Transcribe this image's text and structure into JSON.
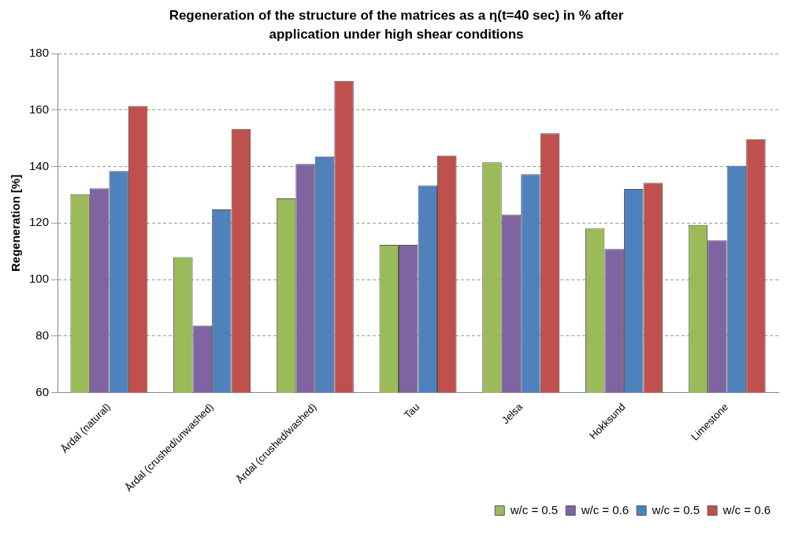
{
  "chart_data": {
    "type": "bar",
    "title": "Regeneration of the structure of the matrices as a η(t=40 sec) in % after application under high shear conditions",
    "ylabel": "Regeneration [%]",
    "categories": [
      "Årdal (natural)",
      "Årdal (crushed/unwashed)",
      "Årdal (crushed/washed)",
      "Tau",
      "Jelsa",
      "Hokksund",
      "Limestone"
    ],
    "series": [
      {
        "name": "w/c = 0.5",
        "color": "#9bbb59",
        "values": [
          130.2,
          108,
          128.7,
          112.3,
          141.5,
          118.1,
          119.3
        ]
      },
      {
        "name": "w/c = 0.6",
        "color": "#8064a2",
        "values": [
          132.3,
          83.7,
          140.9,
          112.3,
          123,
          110.8,
          113.9
        ]
      },
      {
        "name": "w/c = 0.5",
        "color": "#4f81bd",
        "values": [
          138.4,
          124.8,
          143.6,
          133.3,
          137.3,
          132.1,
          140.3
        ]
      },
      {
        "name": "w/c = 0.6",
        "color": "#c0504d",
        "values": [
          161.5,
          153.3,
          170.3,
          143.9,
          151.8,
          134.2,
          149.7
        ]
      }
    ],
    "ylim": [
      60,
      180
    ],
    "yticks": [
      60,
      80,
      100,
      120,
      140,
      160,
      180
    ],
    "grid": "y",
    "legend": "bottom right"
  }
}
